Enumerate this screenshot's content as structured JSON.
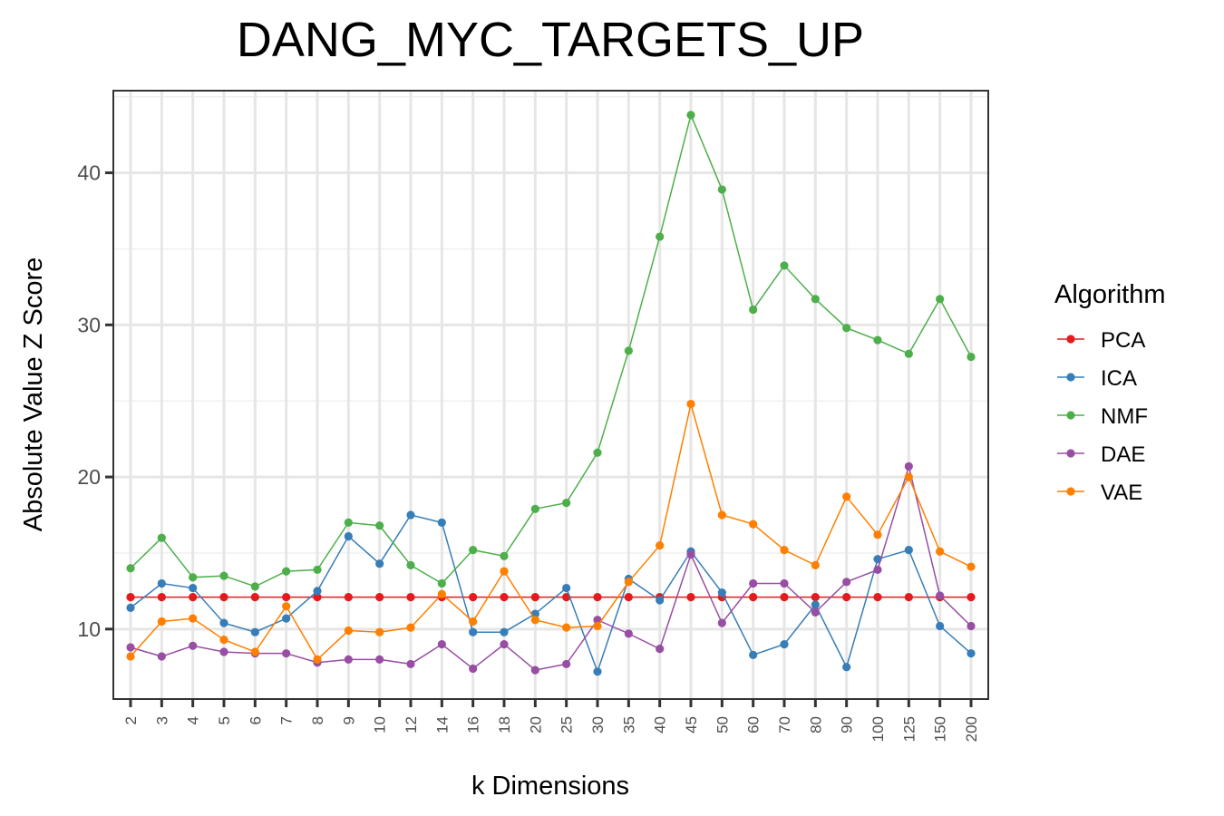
{
  "chart_data": {
    "type": "line",
    "title": "DANG_MYC_TARGETS_UP",
    "xlabel": "k Dimensions",
    "ylabel": "Absolute Value Z Score",
    "categories": [
      "2",
      "3",
      "4",
      "5",
      "6",
      "7",
      "8",
      "9",
      "10",
      "12",
      "14",
      "16",
      "18",
      "20",
      "25",
      "30",
      "35",
      "40",
      "45",
      "50",
      "60",
      "70",
      "80",
      "90",
      "100",
      "125",
      "150",
      "200"
    ],
    "y_ticks": [
      10,
      20,
      30,
      40
    ],
    "ylim": [
      5.4,
      45.4
    ],
    "grid": true,
    "legend": {
      "title": "Algorithm",
      "position": "right"
    },
    "series": [
      {
        "name": "PCA",
        "color": "#E41A1C",
        "values": [
          12.1,
          12.1,
          12.1,
          12.1,
          12.1,
          12.1,
          12.1,
          12.1,
          12.1,
          12.1,
          12.1,
          12.1,
          12.1,
          12.1,
          12.1,
          12.1,
          12.1,
          12.1,
          12.1,
          12.1,
          12.1,
          12.1,
          12.1,
          12.1,
          12.1,
          12.1,
          12.1,
          12.1
        ]
      },
      {
        "name": "ICA",
        "color": "#377EB8",
        "values": [
          11.4,
          13.0,
          12.7,
          10.4,
          9.8,
          10.7,
          12.5,
          16.1,
          14.3,
          17.5,
          17.0,
          9.8,
          9.8,
          11.0,
          12.7,
          7.2,
          13.3,
          11.9,
          15.1,
          12.4,
          8.3,
          9.0,
          11.6,
          7.5,
          14.6,
          15.2,
          10.2,
          8.4
        ]
      },
      {
        "name": "NMF",
        "color": "#4DAF4A",
        "values": [
          14.0,
          16.0,
          13.4,
          13.5,
          12.8,
          13.8,
          13.9,
          17.0,
          16.8,
          14.2,
          13.0,
          15.2,
          14.8,
          17.9,
          18.3,
          21.6,
          28.3,
          35.8,
          43.8,
          38.9,
          31.0,
          33.9,
          31.7,
          29.8,
          29.0,
          28.1,
          31.7,
          27.9
        ]
      },
      {
        "name": "DAE",
        "color": "#984EA3",
        "values": [
          8.8,
          8.2,
          8.9,
          8.5,
          8.4,
          8.4,
          7.8,
          8.0,
          8.0,
          7.7,
          9.0,
          7.4,
          9.0,
          7.3,
          7.7,
          10.6,
          9.7,
          8.7,
          14.9,
          10.4,
          13.0,
          13.0,
          11.1,
          13.1,
          13.9,
          20.7,
          12.2,
          10.2
        ]
      },
      {
        "name": "VAE",
        "color": "#FF7F00",
        "values": [
          8.2,
          10.5,
          10.7,
          9.3,
          8.5,
          11.5,
          8.0,
          9.9,
          9.8,
          10.1,
          12.3,
          10.5,
          13.8,
          10.6,
          10.1,
          10.2,
          13.1,
          15.5,
          24.8,
          17.5,
          16.9,
          15.2,
          14.2,
          18.7,
          16.2,
          20.0,
          15.1,
          14.1
        ]
      }
    ]
  }
}
